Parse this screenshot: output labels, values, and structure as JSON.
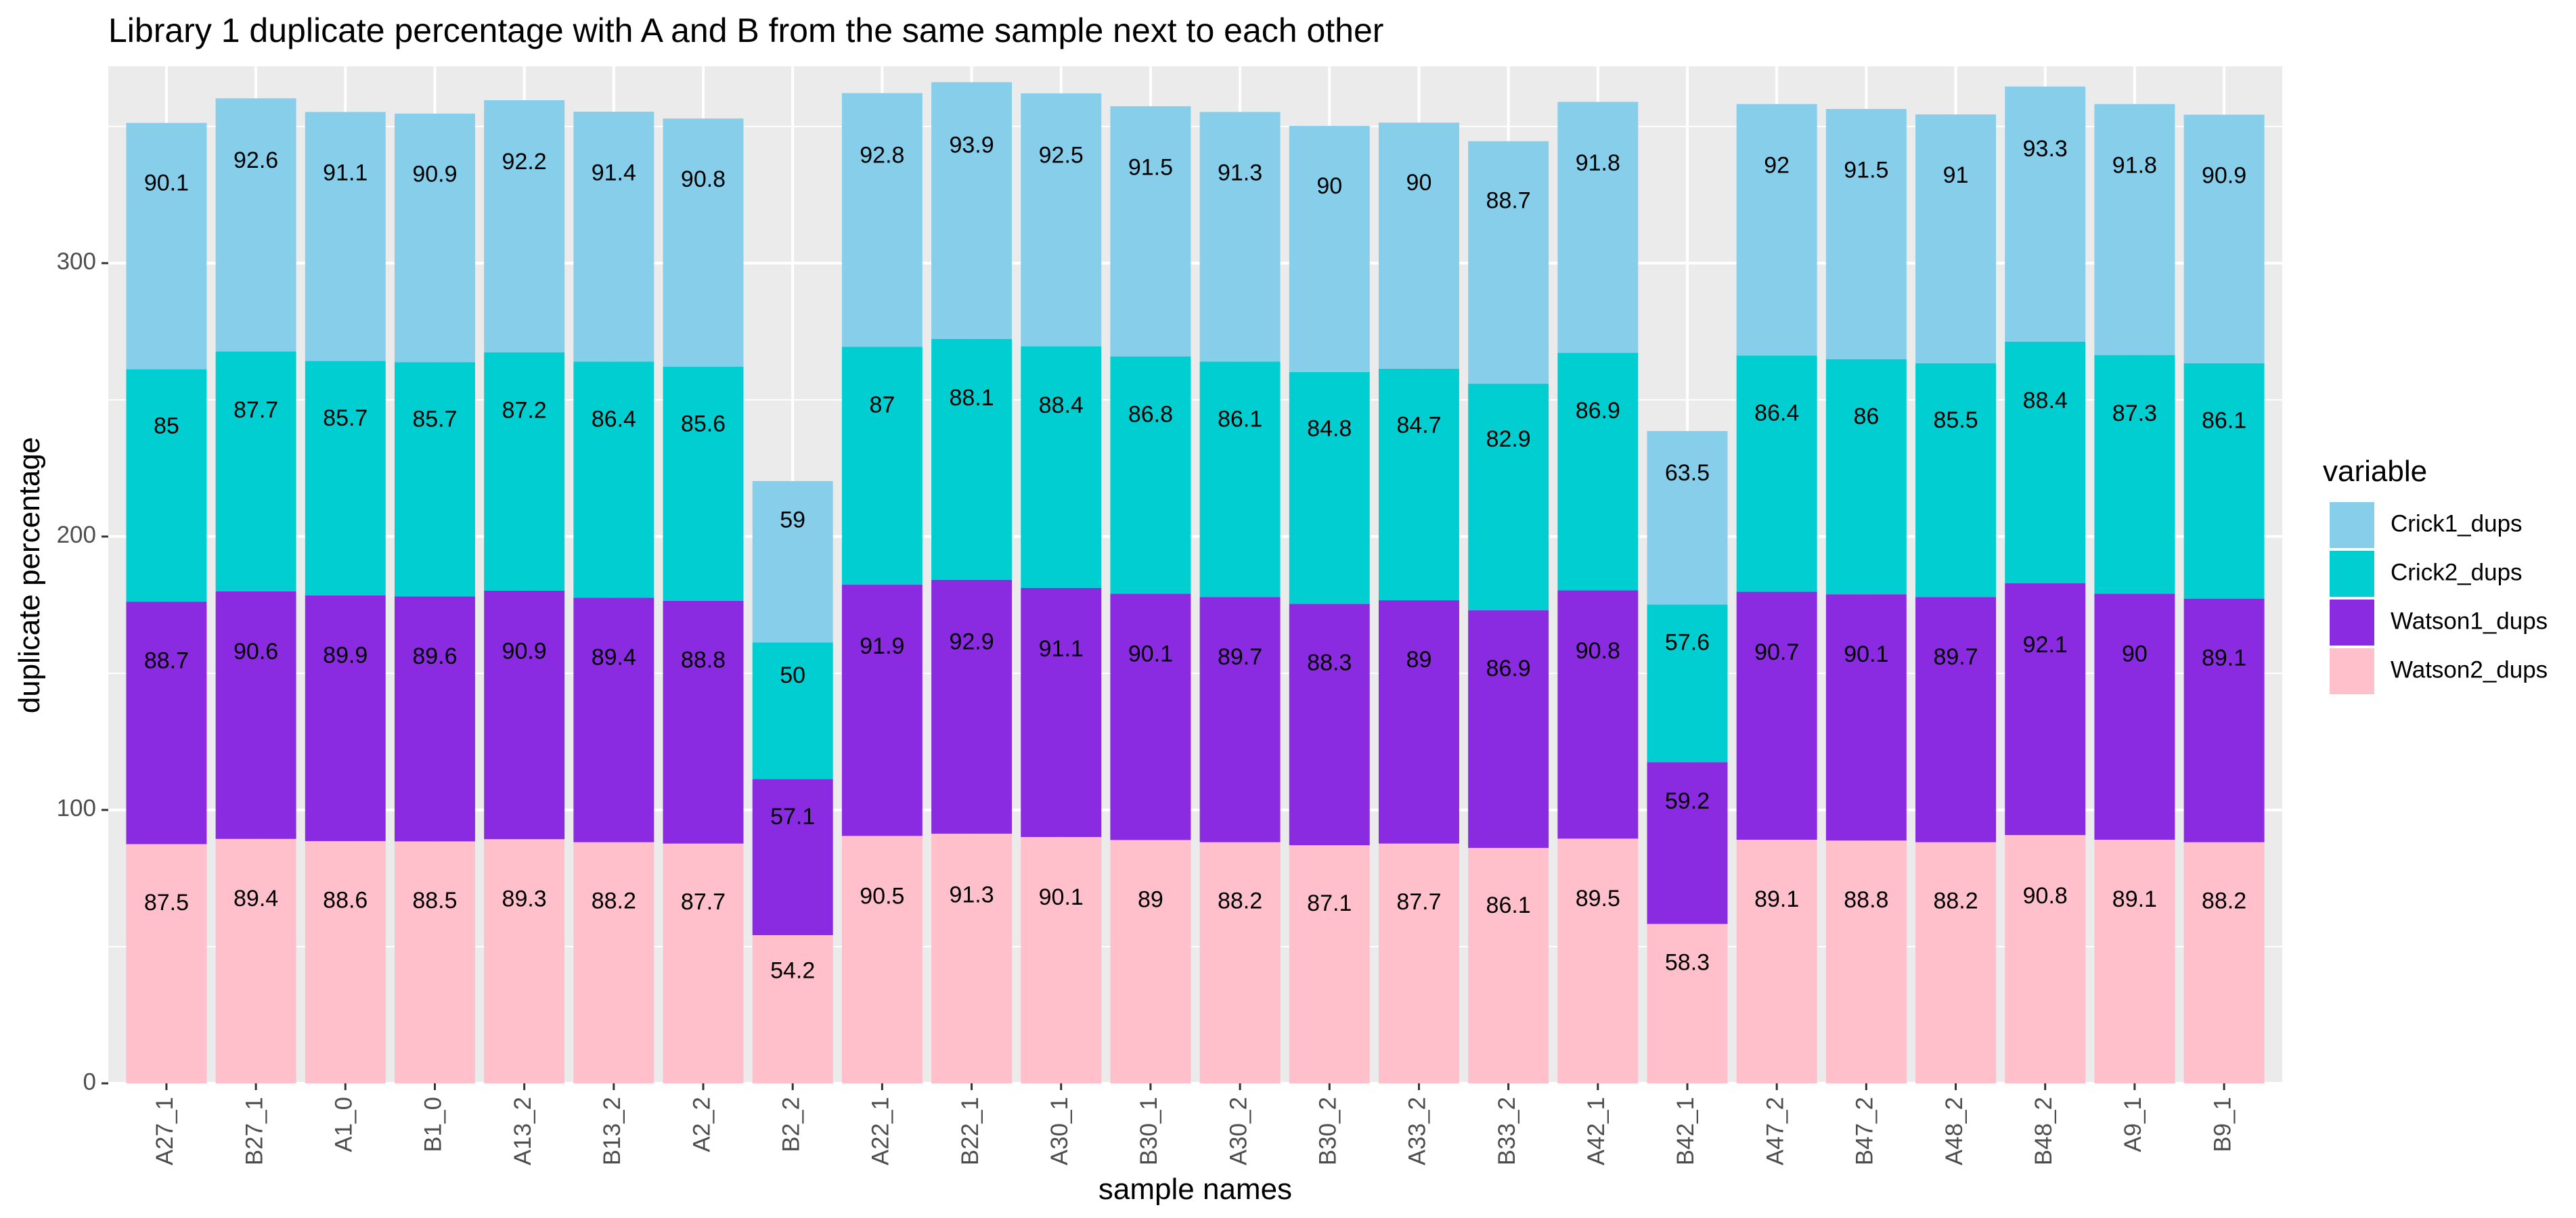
{
  "chart_data": {
    "type": "bar",
    "stacked": true,
    "title": "Library 1 duplicate percentage with A and B from the same sample next to each other",
    "xlabel": "sample names",
    "ylabel": "duplicate percentage",
    "ylim": [
      0,
      372
    ],
    "yticks": [
      0,
      100,
      200,
      300
    ],
    "grid": true,
    "legend": {
      "title": "variable",
      "position": "right"
    },
    "categories": [
      "A27_1",
      "B27_1",
      "A1_0",
      "B1_0",
      "A13_2",
      "B13_2",
      "A2_2",
      "B2_2",
      "A22_1",
      "B22_1",
      "A30_1",
      "B30_1",
      "A30_2",
      "B30_2",
      "A33_2",
      "B33_2",
      "A42_1",
      "B42_1",
      "A47_2",
      "B47_2",
      "A48_2",
      "B48_2",
      "A9_1",
      "B9_1"
    ],
    "series": [
      {
        "name": "Watson2_dups",
        "color": "#FFC0CB",
        "values": [
          87.5,
          89.4,
          88.6,
          88.5,
          89.3,
          88.2,
          87.7,
          54.2,
          90.5,
          91.3,
          90.1,
          89,
          88.2,
          87.1,
          87.7,
          86.1,
          89.5,
          58.3,
          89.1,
          88.8,
          88.2,
          90.8,
          89.1,
          88.2
        ]
      },
      {
        "name": "Watson1_dups",
        "color": "#8A2BE2",
        "values": [
          88.7,
          90.6,
          89.9,
          89.6,
          90.9,
          89.4,
          88.8,
          57.1,
          91.9,
          92.9,
          91.1,
          90.1,
          89.7,
          88.3,
          89,
          86.9,
          90.8,
          59.2,
          90.7,
          90.1,
          89.7,
          92.1,
          90,
          89.1
        ]
      },
      {
        "name": "Crick2_dups",
        "color": "#00CED1",
        "values": [
          85,
          87.7,
          85.7,
          85.7,
          87.2,
          86.4,
          85.6,
          50,
          87,
          88.1,
          88.4,
          86.8,
          86.1,
          84.8,
          84.7,
          82.9,
          86.9,
          57.6,
          86.4,
          86,
          85.5,
          88.4,
          87.3,
          86.1
        ]
      },
      {
        "name": "Crick1_dups",
        "color": "#87CEEB",
        "values": [
          90.1,
          92.6,
          91.1,
          90.9,
          92.2,
          91.4,
          90.8,
          59,
          92.8,
          93.9,
          92.5,
          91.5,
          91.3,
          90,
          90,
          88.7,
          91.8,
          63.5,
          92,
          91.5,
          91,
          93.3,
          91.8,
          90.9
        ]
      }
    ],
    "legend_order": [
      "Crick1_dups",
      "Crick2_dups",
      "Watson1_dups",
      "Watson2_dups"
    ]
  }
}
